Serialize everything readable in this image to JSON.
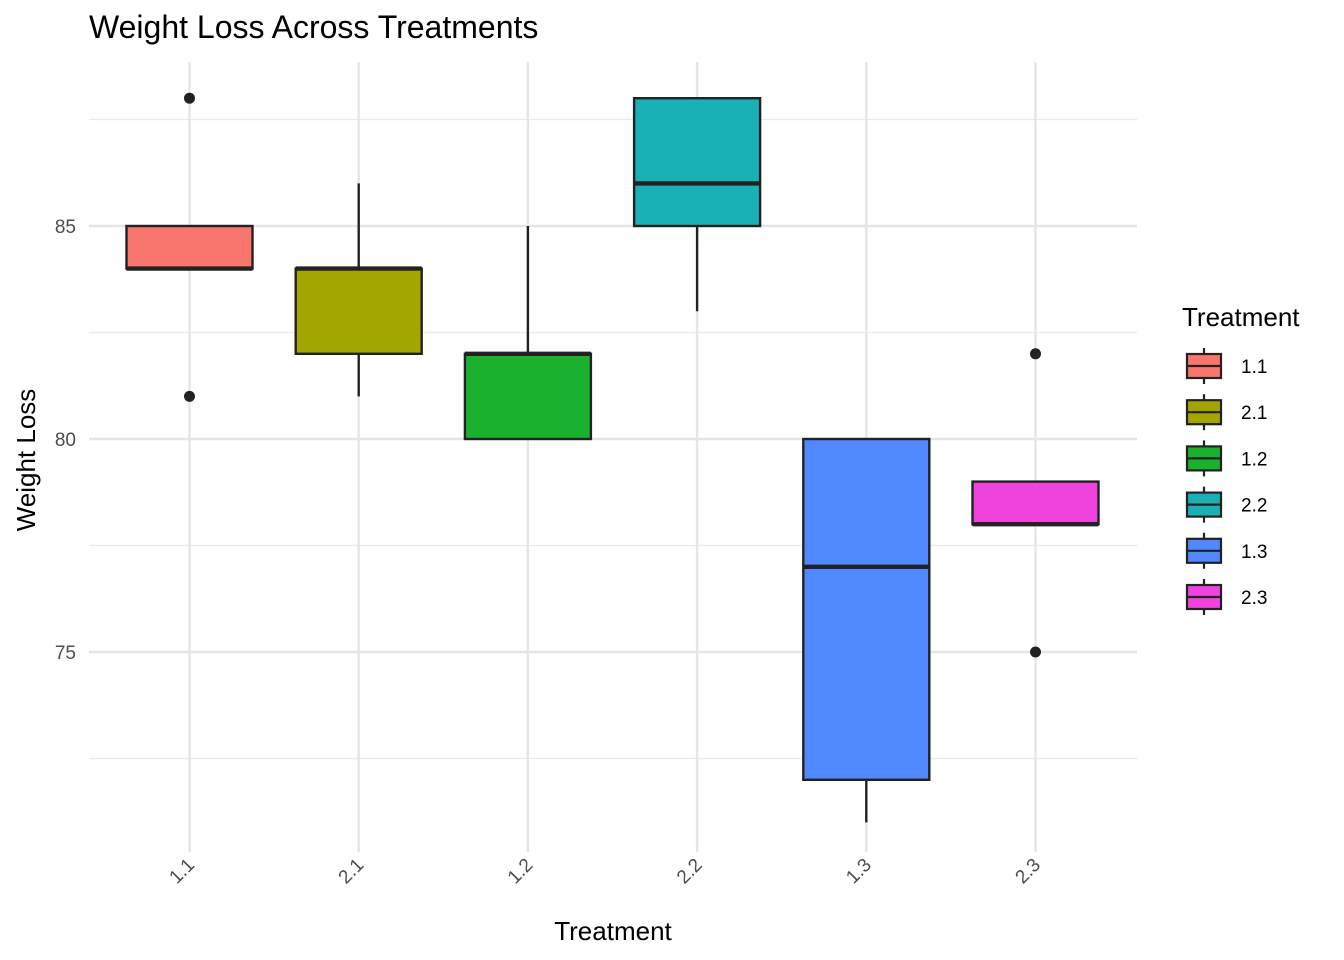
{
  "chart_data": {
    "type": "box",
    "title": "Weight Loss Across Treatments",
    "xlabel": "Treatment",
    "ylabel": "Weight Loss",
    "ylim": [
      70,
      89
    ],
    "y_ticks": [
      75,
      80,
      85
    ],
    "y_minor_ticks": [
      72.5,
      77.5,
      82.5,
      87.5
    ],
    "grid": true,
    "legend": {
      "title": "Treatment",
      "position": "right"
    },
    "categories": [
      "1.1",
      "2.1",
      "1.2",
      "2.2",
      "1.3",
      "2.3"
    ],
    "boxes": [
      {
        "category": "1.1",
        "color": "#F8766D",
        "whisker_low": 84,
        "q1": 84,
        "median": 84,
        "q3": 85,
        "whisker_high": 85,
        "outliers": [
          88,
          81
        ]
      },
      {
        "category": "2.1",
        "color": "#A3A500",
        "whisker_low": 81,
        "q1": 82,
        "median": 84,
        "q3": 84,
        "whisker_high": 86,
        "outliers": []
      },
      {
        "category": "1.2",
        "color": "#1AB12E",
        "whisker_low": 80,
        "q1": 80,
        "median": 82,
        "q3": 82,
        "whisker_high": 85,
        "outliers": []
      },
      {
        "category": "2.2",
        "color": "#1AB1B6",
        "whisker_low": 83,
        "q1": 85,
        "median": 86,
        "q3": 88,
        "whisker_high": 88,
        "outliers": []
      },
      {
        "category": "1.3",
        "color": "#4F88FF",
        "whisker_low": 71,
        "q1": 72,
        "median": 77,
        "q3": 80,
        "whisker_high": 80,
        "outliers": []
      },
      {
        "category": "2.3",
        "color": "#F042DD",
        "whisker_low": 78,
        "q1": 78,
        "median": 78,
        "q3": 79,
        "whisker_high": 79,
        "outliers": [
          82,
          75
        ]
      }
    ]
  }
}
